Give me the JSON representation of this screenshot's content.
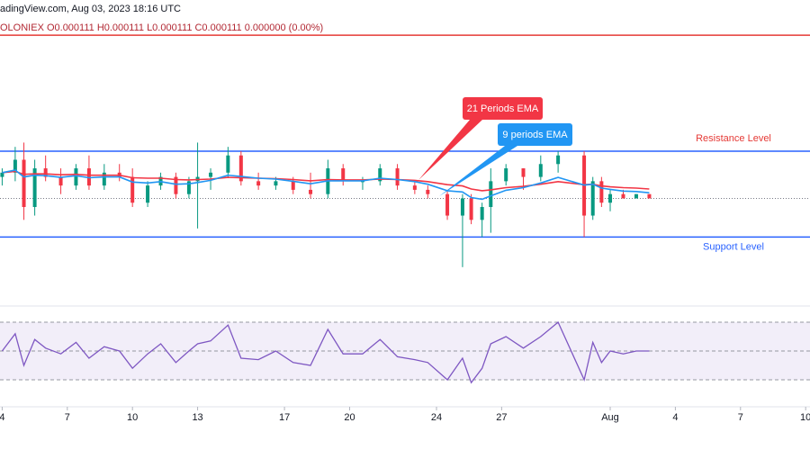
{
  "chart_data": [
    {
      "type": "candlestick",
      "title": "adingView.com, Aug 03, 2023 18:16 UTC",
      "subtitle": "OLONIEX  O0.000111  H0.000111  L0.000111  C0.000111  0.000000 (0.00%)",
      "x": [
        4.0,
        4.6,
        5.0,
        5.5,
        6.0,
        6.7,
        7.4,
        8.0,
        8.7,
        9.4,
        10.0,
        10.7,
        11.3,
        12.0,
        12.6,
        13.0,
        13.6,
        14.4,
        15.0,
        15.8,
        16.6,
        17.4,
        18.2,
        19.0,
        19.7,
        20.6,
        21.4,
        22.2,
        23.0,
        23.6,
        24.5,
        25.2,
        25.6,
        26.1,
        26.5,
        27.2,
        28.0,
        28.8,
        29.6,
        30.8,
        31.2,
        31.6,
        32.0,
        32.6,
        33.2,
        33.8
      ],
      "xlim": [
        3.9,
        41.2
      ],
      "xticks": [
        4,
        7,
        10,
        13,
        17,
        20,
        24,
        27,
        {
          "value": 32,
          "label": "Aug"
        },
        {
          "value": 35,
          "label": "4"
        },
        {
          "value": 38,
          "label": "7"
        },
        {
          "value": 41,
          "label": "10"
        }
      ],
      "ylim": [
        0.0001086,
        0.0001152
      ],
      "up_color": "#089981",
      "down_color": "#f23645",
      "open": [
        0.0001115,
        0.0001116,
        0.0001119,
        0.0001108,
        0.0001117,
        0.0001115,
        0.0001113,
        0.0001117,
        0.0001113,
        0.0001116,
        0.0001115,
        0.0001109,
        0.0001113,
        0.0001115,
        0.0001111,
        0.0001114,
        0.0001115,
        0.0001116,
        0.000112,
        0.0001114,
        0.0001113,
        0.0001114,
        0.0001112,
        0.0001111,
        0.0001117,
        0.0001114,
        0.0001114,
        0.0001117,
        0.0001113,
        0.0001112,
        0.0001111,
        0.0001106,
        0.000111,
        0.0001105,
        0.0001108,
        0.0001114,
        0.0001117,
        0.0001115,
        0.0001118,
        0.000112,
        0.0001106,
        0.0001114,
        0.0001109,
        0.0001111,
        0.000111,
        0.0001111
      ],
      "high": [
        0.0001117,
        0.0001122,
        0.0001123,
        0.0001119,
        0.000112,
        0.0001117,
        0.0001118,
        0.000112,
        0.0001118,
        0.0001118,
        0.0001117,
        0.0001114,
        0.0001116,
        0.0001116,
        0.0001115,
        0.0001123,
        0.0001117,
        0.0001122,
        0.0001121,
        0.0001116,
        0.0001115,
        0.0001115,
        0.0001116,
        0.0001119,
        0.0001118,
        0.0001115,
        0.0001118,
        0.0001118,
        0.0001114,
        0.0001113,
        0.0001112,
        0.0001111,
        0.0001111,
        0.0001109,
        0.0001117,
        0.0001118,
        0.0001117,
        0.000112,
        0.0001121,
        0.0001121,
        0.0001115,
        0.0001115,
        0.0001112,
        0.0001112,
        0.0001111,
        0.0001111
      ],
      "low": [
        0.0001113,
        0.0001114,
        0.0001105,
        0.0001106,
        0.0001114,
        0.0001111,
        0.0001112,
        0.0001112,
        0.0001112,
        0.0001114,
        0.0001108,
        0.0001108,
        0.0001112,
        0.000111,
        0.000111,
        0.0001103,
        0.0001112,
        0.0001115,
        0.0001113,
        0.0001112,
        0.0001112,
        0.0001111,
        0.000111,
        0.000111,
        0.0001113,
        0.0001112,
        0.0001113,
        0.0001112,
        0.0001111,
        0.000111,
        0.0001105,
        0.0001094,
        0.0001104,
        0.0001101,
        0.0001102,
        0.0001113,
        0.0001112,
        0.0001114,
        0.0001116,
        0.0001101,
        0.0001105,
        0.0001108,
        0.0001107,
        0.000111,
        0.000111,
        0.000111
      ],
      "close": [
        0.0001116,
        0.0001119,
        0.0001108,
        0.0001117,
        0.0001115,
        0.0001113,
        0.0001117,
        0.0001113,
        0.0001116,
        0.0001115,
        0.0001109,
        0.0001113,
        0.0001115,
        0.0001111,
        0.0001114,
        0.0001115,
        0.0001116,
        0.000112,
        0.0001114,
        0.0001113,
        0.0001114,
        0.0001112,
        0.0001111,
        0.0001117,
        0.0001114,
        0.0001114,
        0.0001117,
        0.0001113,
        0.0001112,
        0.0001111,
        0.0001106,
        0.000111,
        0.0001105,
        0.0001108,
        0.0001114,
        0.0001117,
        0.0001115,
        0.0001118,
        0.000112,
        0.0001106,
        0.0001114,
        0.0001109,
        0.0001111,
        0.000111,
        0.0001111,
        0.000111
      ],
      "series": [
        {
          "name": "21 Periods EMA",
          "color": "#f23645",
          "values": [
            0.0001116,
            0.00011163,
            0.00011156,
            0.00011157,
            0.00011157,
            0.00011155,
            0.00011156,
            0.00011154,
            0.00011154,
            0.00011154,
            0.00011148,
            0.00011147,
            0.00011147,
            0.00011144,
            0.00011143,
            0.00011144,
            0.00011145,
            0.00011149,
            0.00011148,
            0.00011147,
            0.00011146,
            0.00011144,
            0.00011141,
            0.00011144,
            0.00011143,
            0.00011143,
            0.00011145,
            0.00011144,
            0.00011142,
            0.00011139,
            0.00011132,
            0.00011129,
            0.00011122,
            0.00011118,
            0.0001112,
            0.00011125,
            0.00011128,
            0.00011133,
            0.00011139,
            0.00011132,
            0.00011133,
            0.00011129,
            0.00011127,
            0.00011125,
            0.00011124,
            0.00011122
          ]
        },
        {
          "name": "9 periods EMA",
          "color": "#2196f3",
          "values": [
            0.0001116,
            0.00011166,
            0.0001115,
            0.00011154,
            0.00011153,
            0.00011149,
            0.00011153,
            0.00011148,
            0.0001115,
            0.0001115,
            0.00011138,
            0.00011136,
            0.00011139,
            0.00011133,
            0.00011134,
            0.00011137,
            0.00011142,
            0.00011154,
            0.00011151,
            0.00011147,
            0.00011145,
            0.0001114,
            0.00011134,
            0.00011141,
            0.00011141,
            0.00011141,
            0.00011147,
            0.00011144,
            0.00011139,
            0.00011133,
            0.00011118,
            0.00011115,
            0.00011102,
            0.00011098,
            0.00011106,
            0.00011119,
            0.00011125,
            0.00011136,
            0.00011149,
            0.00011131,
            0.00011133,
            0.00011124,
            0.00011121,
            0.00011117,
            0.00011116,
            0.00011113
          ]
        }
      ],
      "levels": [
        {
          "label": "Resistance Level",
          "value": 0.0001121,
          "color": "#2962ff",
          "label_color": "#e53935"
        },
        {
          "label": "Support Level",
          "value": 0.0001101,
          "color": "#2962ff",
          "label_color": "#2962ff"
        },
        {
          "value": 0.0001148,
          "color": "#e53935"
        }
      ],
      "last_price": 0.000111
    },
    {
      "type": "line",
      "color": "#7e57c2",
      "ylim": [
        20,
        80
      ],
      "band": [
        30,
        70
      ],
      "midline": 50,
      "values": [
        50,
        62,
        40,
        58,
        52,
        48,
        56,
        45,
        53,
        50,
        38,
        48,
        55,
        42,
        50,
        55,
        57,
        68,
        45,
        44,
        50,
        42,
        40,
        65,
        48,
        48,
        58,
        46,
        44,
        42,
        30,
        45,
        28,
        38,
        55,
        60,
        52,
        60,
        70,
        30,
        56,
        42,
        50,
        48,
        50,
        50
      ]
    }
  ]
}
